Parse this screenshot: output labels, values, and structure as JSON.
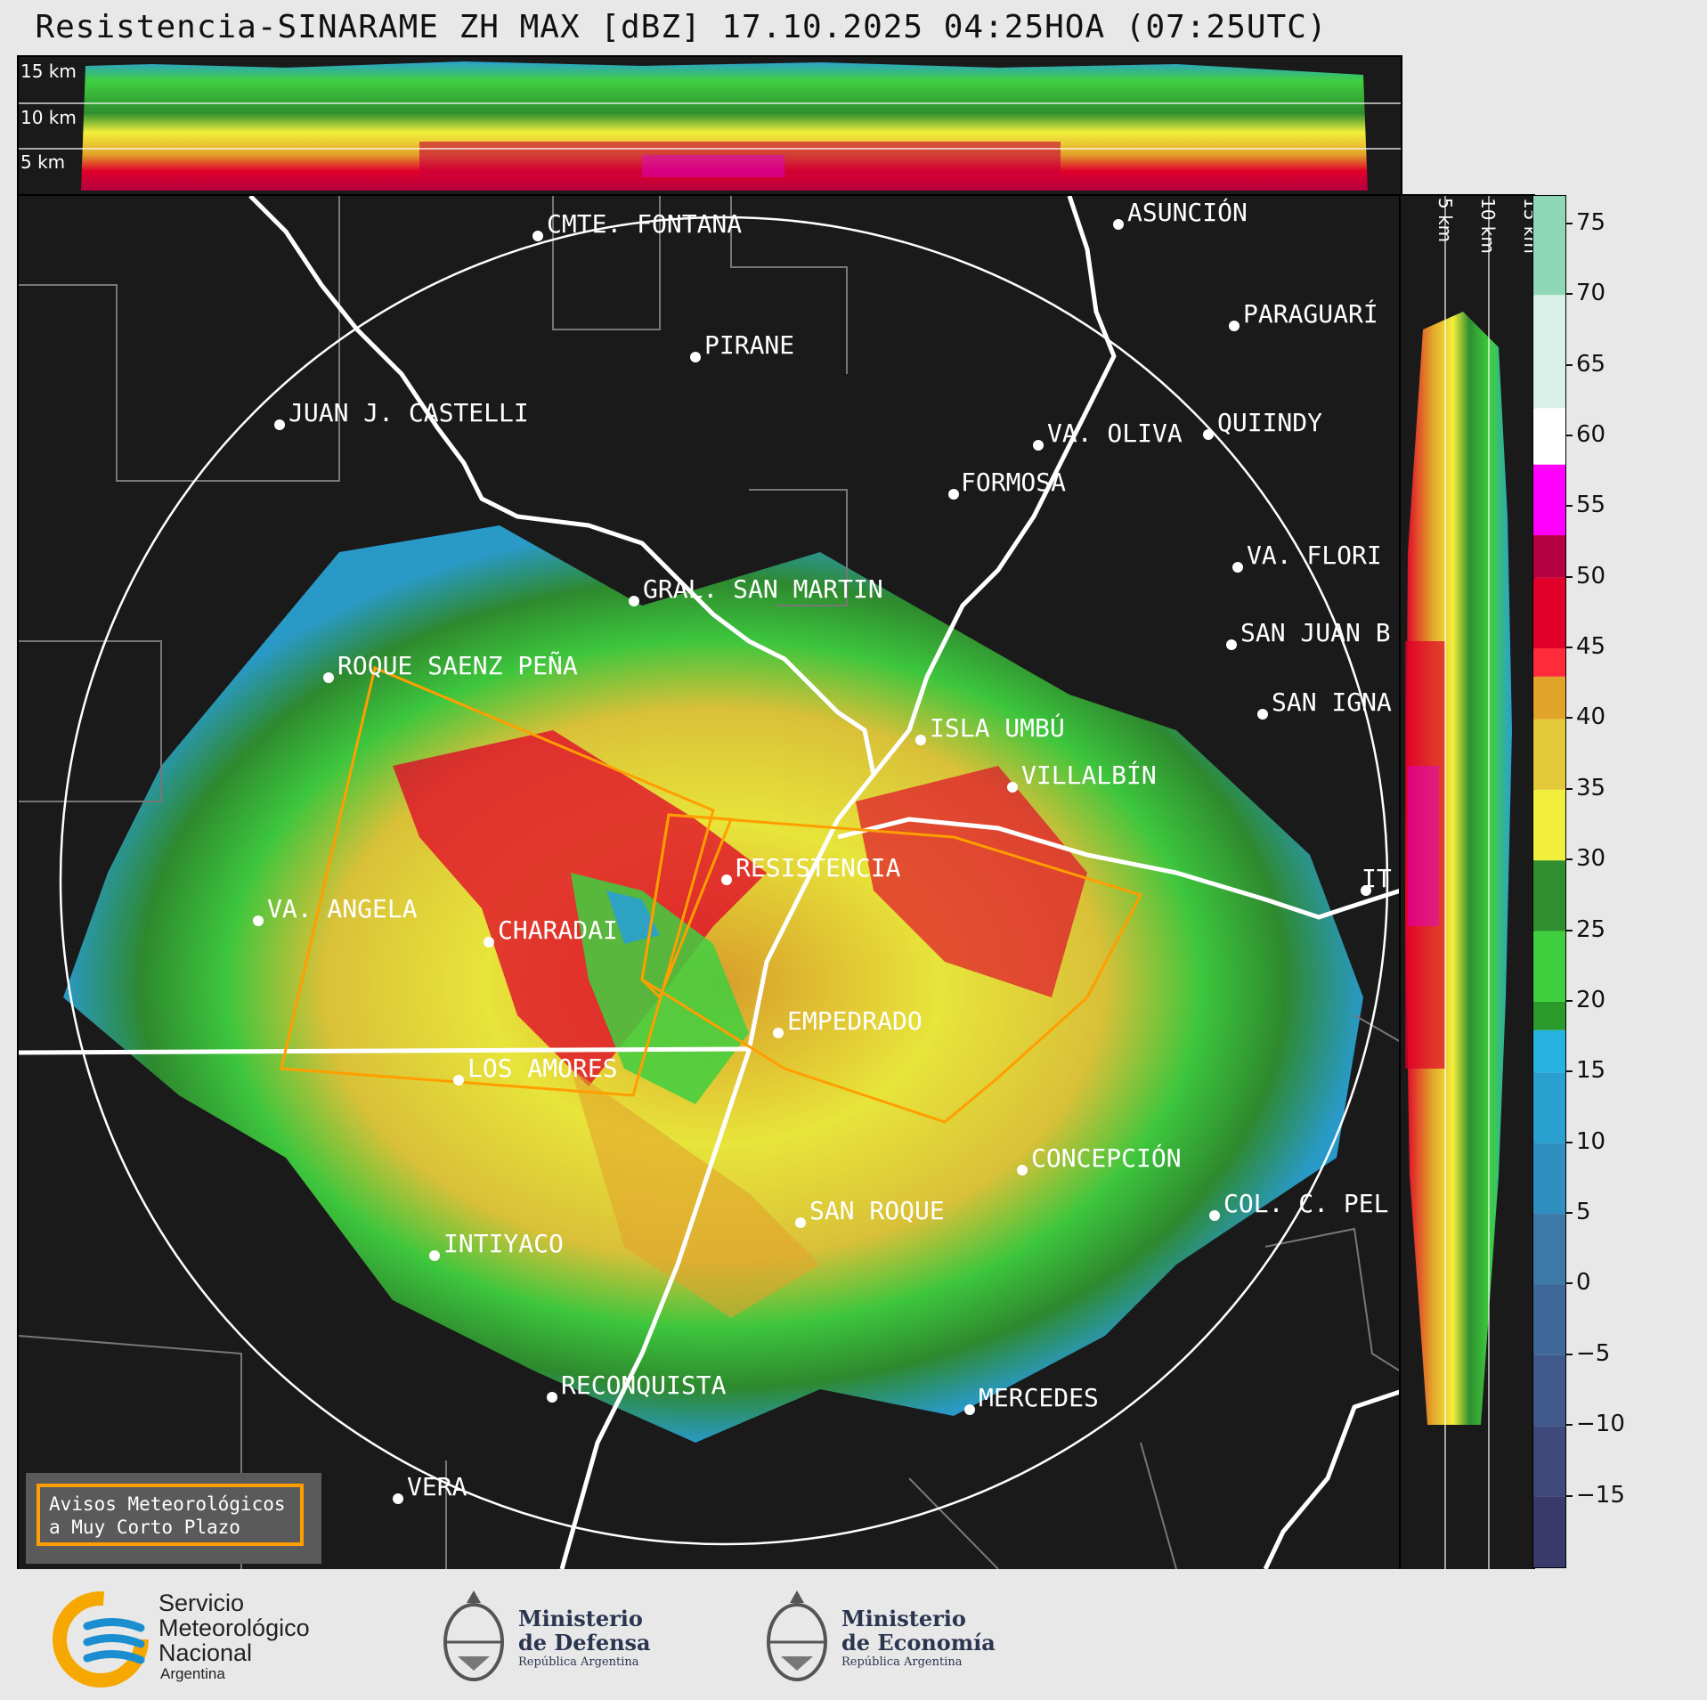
{
  "title": "Resistencia-SINARAME ZH MAX [dBZ] 17.10.2025 04:25HOA (07:25UTC)",
  "top_panel": {
    "alt_labels": [
      "15 km",
      "10 km",
      "5 km"
    ]
  },
  "side_panel": {
    "alt_labels": [
      "5 km",
      "10 km",
      "15 km"
    ]
  },
  "colorbar": {
    "unit": "dBZ",
    "ticks": [
      "75",
      "70",
      "65",
      "60",
      "55",
      "50",
      "45",
      "40",
      "35",
      "30",
      "25",
      "20",
      "15",
      "10",
      "5",
      "0",
      "−5",
      "−10",
      "−15"
    ],
    "range": [
      -20,
      77
    ],
    "colors": {
      "-20": "#3a3a6a",
      "-15": "#3f4a7c",
      "-10": "#40588c",
      "-5": "#3f6898",
      "0": "#3d7aa8",
      "5": "#2f8fc0",
      "10": "#2aa0d0",
      "15": "#26b3e0",
      "18": "#2a9a2a",
      "20": "#3fcf3f",
      "25": "#2f8f2f",
      "30": "#f2ef3c",
      "35": "#e3c93a",
      "40": "#e2a32b",
      "43": "#ff2a3a",
      "45": "#e0002a",
      "50": "#b40040",
      "53": "#ff00ff",
      "58": "#ffffff",
      "62": "#d8f0e8",
      "70": "#8ed8b8"
    }
  },
  "cities": [
    {
      "name": "CMTE. FONTANA"
    },
    {
      "name": "ASUNCIÓN"
    },
    {
      "name": "PARAGUARÍ"
    },
    {
      "name": "PIRANE"
    },
    {
      "name": "JUAN J. CASTELLI"
    },
    {
      "name": "VA. OLIVA"
    },
    {
      "name": "QUIINDY"
    },
    {
      "name": "FORMOSA"
    },
    {
      "name": "VA. FLORI"
    },
    {
      "name": "GRAL. SAN MARTIN"
    },
    {
      "name": "SAN JUAN B"
    },
    {
      "name": "ROQUE SAENZ PEÑA"
    },
    {
      "name": "SAN IGNA"
    },
    {
      "name": "ISLA UMBÚ"
    },
    {
      "name": "VILLALBÍN"
    },
    {
      "name": "RESISTENCIA"
    },
    {
      "name": "VA. ANGELA"
    },
    {
      "name": "CHARADAI"
    },
    {
      "name": "IT"
    },
    {
      "name": "EMPEDRADO"
    },
    {
      "name": "LOS AMORES"
    },
    {
      "name": "CONCEPCIÓN"
    },
    {
      "name": "SAN ROQUE"
    },
    {
      "name": "COL. C. PEL"
    },
    {
      "name": "INTIYACO"
    },
    {
      "name": "RECONQUISTA"
    },
    {
      "name": "MERCEDES"
    },
    {
      "name": "VERA"
    }
  ],
  "warnings_box": {
    "line1": "Avisos Meteorológicos",
    "line2": "a Muy Corto Plazo",
    "border_color": "#ff9e00"
  },
  "footer": {
    "smn": {
      "line1": "Servicio",
      "line2": "Meteorológico",
      "line3": "Nacional",
      "line4": "Argentina"
    },
    "defensa": {
      "line1": "Ministerio",
      "line2": "de Defensa",
      "line3": "República Argentina"
    },
    "economia": {
      "line1": "Ministerio",
      "line2": "de Economía",
      "line3": "República Argentina"
    }
  }
}
